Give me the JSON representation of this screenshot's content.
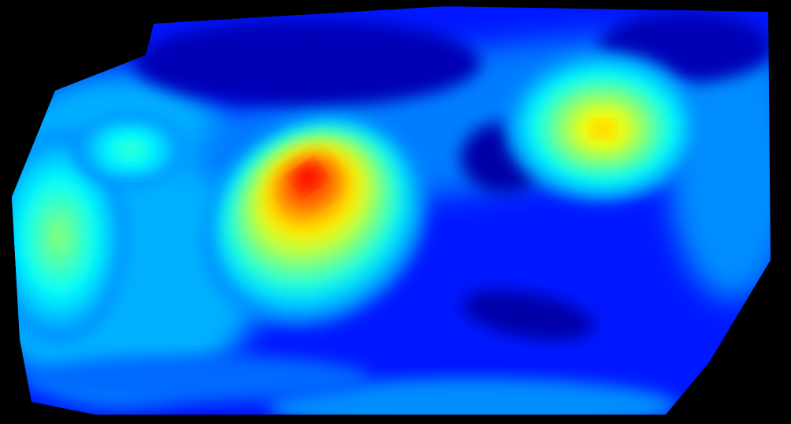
{
  "chart_data": {
    "type": "heatmap",
    "title": "",
    "xlabel": "",
    "ylabel": "",
    "colormap": "jet",
    "colorbar": false,
    "grid": false,
    "legend": "none",
    "value_range": [
      0,
      1
    ],
    "background_color": "#000000",
    "palette": [
      "#00008f",
      "#0000ff",
      "#0080ff",
      "#00ffff",
      "#80ff80",
      "#ffff00",
      "#ff8000",
      "#ff0000"
    ],
    "hotspots": [
      {
        "name": "central-ridge-peak",
        "peak": 1.0
      },
      {
        "name": "right-upper-peak",
        "peak": 0.78
      },
      {
        "name": "left-lobe",
        "peak": 0.58
      },
      {
        "name": "left-upper-lobe",
        "peak": 0.5
      }
    ],
    "cold_regions": [
      {
        "name": "top-cold-band",
        "value": 0.05
      },
      {
        "name": "right-lower-cold-pocket",
        "value": 0.03
      }
    ]
  }
}
